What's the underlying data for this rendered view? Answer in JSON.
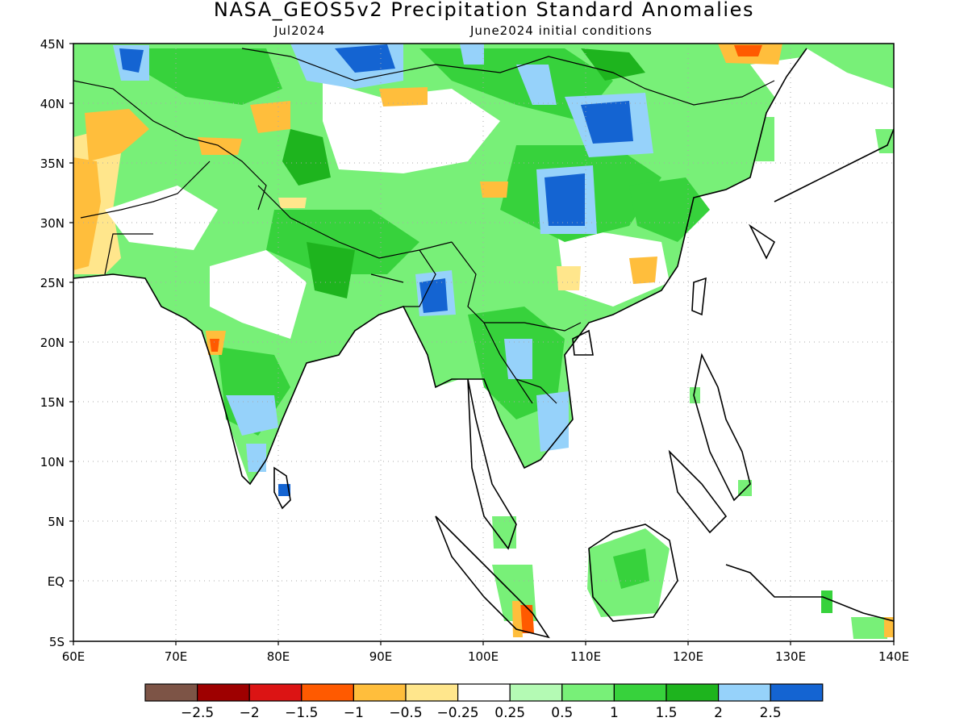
{
  "map": {
    "title": "NASA_GEOS5v2 Precipitation Standard Anomalies",
    "valid_month": "Jul2024",
    "init_conditions": "June2024 initial conditions",
    "lat_labels": [
      "45N",
      "40N",
      "35N",
      "30N",
      "25N",
      "20N",
      "15N",
      "10N",
      "5N",
      "EQ",
      "5S"
    ],
    "lon_labels": [
      "60E",
      "70E",
      "80E",
      "90E",
      "100E",
      "110E",
      "120E",
      "130E",
      "140E"
    ],
    "colorbar": {
      "colors": [
        "#7d5446",
        "#9e0000",
        "#dc1414",
        "#ff5a00",
        "#ffbe3c",
        "#ffe68c",
        "#ffffff",
        "#b4fab4",
        "#78f078",
        "#37d23c",
        "#1eb41e",
        "#96d2fa",
        "#1464d2"
      ],
      "labels": [
        "−2.5",
        "−2",
        "−1.5",
        "−1",
        "−0.5",
        "−0.25",
        "0.25",
        "0.5",
        "1",
        "1.5",
        "2",
        "2.5"
      ]
    }
  }
}
